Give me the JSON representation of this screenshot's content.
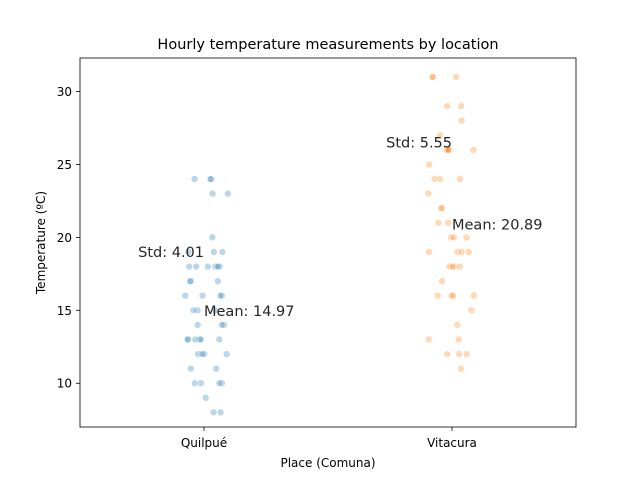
{
  "chart_data": {
    "type": "scatter",
    "subtype": "strip",
    "title": "Hourly temperature measurements by location",
    "xlabel": "Place (Comuna)",
    "ylabel": "Temperature (ºC)",
    "categories": [
      "Quilpué",
      "Vitacura"
    ],
    "ylim": [
      7,
      32.3
    ],
    "yticks": [
      10,
      15,
      20,
      25,
      30
    ],
    "grid": false,
    "colors": {
      "Quilpué": "#1f77b4",
      "Vitacura": "#ff7f0e"
    },
    "series": [
      {
        "category": "Quilpué",
        "values": [
          24,
          24,
          24,
          23,
          23,
          20,
          19,
          19,
          19,
          18,
          18,
          18,
          18,
          18,
          18,
          17,
          17,
          17,
          16,
          16,
          16,
          16,
          15,
          15,
          15,
          14,
          14,
          14,
          13,
          13,
          13,
          13,
          13,
          13,
          12,
          12,
          12,
          12,
          11,
          11,
          10,
          10,
          10,
          10,
          9,
          8,
          8
        ]
      },
      {
        "category": "Vitacura",
        "values": [
          31,
          31,
          31,
          29,
          29,
          28,
          27,
          26,
          26,
          26,
          26,
          26,
          25,
          24,
          24,
          24,
          23,
          22,
          22,
          21,
          21,
          20,
          20,
          20,
          19,
          19,
          19,
          19,
          18,
          18,
          18,
          18,
          17,
          16,
          16,
          16,
          16,
          15,
          14,
          13,
          13,
          12,
          12,
          12,
          11
        ]
      }
    ],
    "annotations": [
      {
        "text": "Std: 4.01",
        "x": "Quilpué",
        "y": 19.0,
        "anchor": "end"
      },
      {
        "text": "Mean: 14.97",
        "x": "Quilpué",
        "y": 14.97,
        "anchor": "start"
      },
      {
        "text": "Std: 5.55",
        "x": "Vitacura",
        "y": 26.5,
        "anchor": "end"
      },
      {
        "text": "Mean: 20.89",
        "x": "Vitacura",
        "y": 20.89,
        "anchor": "start"
      }
    ]
  }
}
